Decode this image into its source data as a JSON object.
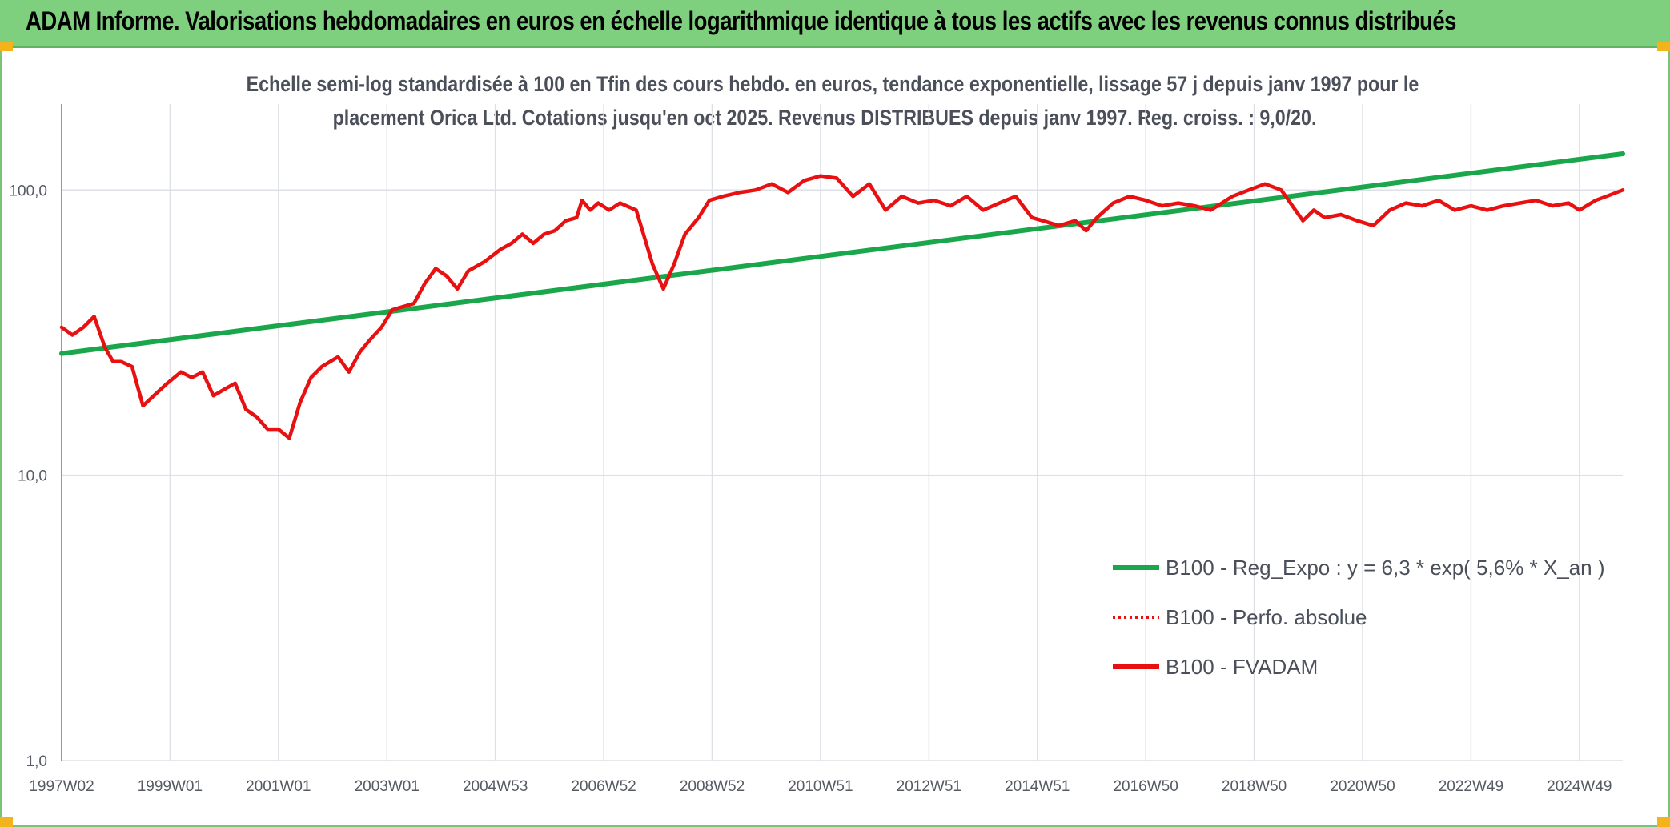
{
  "banner": {
    "title": "ADAM Informe. Valorisations hebdomadaires en euros en échelle logarithmique identique à tous les actifs avec les revenus connus distribués"
  },
  "chart_data": {
    "type": "line",
    "title_line1": "Echelle semi-log standardisée à 100 en Tfin des cours hebdo. en euros, tendance exponentielle, lissage 57 j depuis janv 1997 pour le",
    "title_line2": "placement Orica Ltd. Cotations jusqu'en oct 2025. Revenus DISTRIBUES depuis janv 1997. Reg. croiss. : 9,0/20.",
    "y_scale": "log",
    "ylim": [
      1,
      200
    ],
    "y_ticks": [
      {
        "value": 1,
        "label": "1,0"
      },
      {
        "value": 10,
        "label": "10,0"
      },
      {
        "value": 100,
        "label": "100,0"
      }
    ],
    "xlim": [
      1997.0,
      2025.8
    ],
    "x_ticks": [
      {
        "value": 1997.0,
        "label": "1997W02"
      },
      {
        "value": 1999.0,
        "label": "1999W01"
      },
      {
        "value": 2001.0,
        "label": "2001W01"
      },
      {
        "value": 2003.0,
        "label": "2003W01"
      },
      {
        "value": 2005.0,
        "label": "2004W53"
      },
      {
        "value": 2007.0,
        "label": "2006W52"
      },
      {
        "value": 2009.0,
        "label": "2008W52"
      },
      {
        "value": 2011.0,
        "label": "2010W51"
      },
      {
        "value": 2013.0,
        "label": "2012W51"
      },
      {
        "value": 2015.0,
        "label": "2014W51"
      },
      {
        "value": 2017.0,
        "label": "2016W50"
      },
      {
        "value": 2019.0,
        "label": "2018W50"
      },
      {
        "value": 2021.0,
        "label": "2020W50"
      },
      {
        "value": 2023.0,
        "label": "2022W49"
      },
      {
        "value": 2025.0,
        "label": "2024W49"
      }
    ],
    "grid": "vertical and horizontal, light gray",
    "legend_position": "bottom-right",
    "series": [
      {
        "name": "B100 - Reg_Expo : y = 6,3 * exp( 5,6% *  X_an )",
        "color": "#1aa64a",
        "style": "solid-thick",
        "x": [
          1997.0,
          2025.8
        ],
        "y": [
          26.7,
          134
        ]
      },
      {
        "name": "B100 - Perfo. absolue",
        "color": "#e81010",
        "style": "dotted",
        "x": [],
        "y": []
      },
      {
        "name": "B100 - FVADAM",
        "color": "#e81010",
        "style": "solid-thick",
        "x": [
          1997.0,
          1997.2,
          1997.4,
          1997.6,
          1997.8,
          1997.95,
          1998.1,
          1998.3,
          1998.5,
          1998.7,
          1998.95,
          1999.2,
          1999.4,
          1999.6,
          1999.8,
          2000.0,
          2000.2,
          2000.4,
          2000.6,
          2000.8,
          2001.0,
          2001.2,
          2001.4,
          2001.6,
          2001.8,
          2001.95,
          2002.1,
          2002.3,
          2002.5,
          2002.7,
          2002.9,
          2003.1,
          2003.3,
          2003.5,
          2003.7,
          2003.9,
          2004.1,
          2004.3,
          2004.5,
          2004.8,
          2005.1,
          2005.3,
          2005.5,
          2005.7,
          2005.9,
          2006.1,
          2006.3,
          2006.5,
          2006.6,
          2006.75,
          2006.9,
          2007.1,
          2007.3,
          2007.6,
          2007.9,
          2008.1,
          2008.3,
          2008.5,
          2008.75,
          2008.95,
          2009.2,
          2009.5,
          2009.8,
          2010.1,
          2010.4,
          2010.7,
          2011.0,
          2011.3,
          2011.6,
          2011.9,
          2012.2,
          2012.5,
          2012.8,
          2013.1,
          2013.4,
          2013.7,
          2014.0,
          2014.3,
          2014.6,
          2014.9,
          2015.1,
          2015.4,
          2015.7,
          2015.9,
          2016.1,
          2016.4,
          2016.7,
          2017.0,
          2017.3,
          2017.6,
          2017.9,
          2018.2,
          2018.6,
          2018.9,
          2019.2,
          2019.5,
          2019.9,
          2020.1,
          2020.3,
          2020.6,
          2020.9,
          2021.2,
          2021.5,
          2021.8,
          2022.1,
          2022.4,
          2022.7,
          2023.0,
          2023.3,
          2023.6,
          2023.9,
          2024.2,
          2024.5,
          2024.8,
          2025.0,
          2025.3,
          2025.5,
          2025.8
        ],
        "y": [
          33,
          31,
          33,
          36,
          28,
          25,
          25,
          24,
          17.5,
          19,
          21,
          23,
          22,
          23,
          19,
          20,
          21,
          17,
          16,
          14.5,
          14.5,
          13.5,
          18,
          22,
          24,
          25,
          26,
          23,
          27,
          30,
          33,
          38,
          39,
          40,
          47,
          53,
          50,
          45,
          52,
          56,
          62,
          65,
          70,
          65,
          70,
          72,
          78,
          80,
          92,
          85,
          90,
          85,
          90,
          85,
          55,
          45,
          55,
          70,
          80,
          92,
          95,
          98,
          100,
          105,
          98,
          108,
          112,
          110,
          95,
          105,
          85,
          95,
          90,
          92,
          88,
          95,
          85,
          90,
          95,
          80,
          78,
          75,
          78,
          72,
          80,
          90,
          95,
          92,
          88,
          90,
          88,
          85,
          95,
          100,
          105,
          100,
          78,
          85,
          80,
          82,
          78,
          75,
          85,
          90,
          88,
          92,
          85,
          88,
          85,
          88,
          90,
          92,
          88,
          90,
          85,
          92,
          95,
          100
        ]
      }
    ]
  }
}
